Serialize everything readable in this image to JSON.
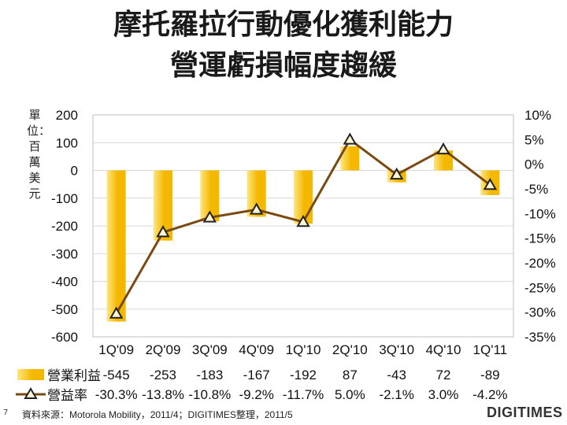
{
  "title_line1": "摩托羅拉行動優化獲利能力",
  "title_line2": "營運虧損幅度趨緩",
  "unit_label": "單位：百萬美元",
  "source": "資料來源：Motorola Mobility，2011/4；DIGITIMES整理，2011/5",
  "page_number": "7",
  "brand": "DIGITIMES",
  "colors": {
    "bar": "#F5B800",
    "bar_light": "#FFE680",
    "line": "#7A4A12",
    "marker_fill": "#FFF6D5",
    "grid": "#D9D9D9"
  },
  "chart_data": {
    "type": "bar+line",
    "categories": [
      "1Q'09",
      "2Q'09",
      "3Q'09",
      "4Q'09",
      "1Q'10",
      "2Q'10",
      "3Q'10",
      "4Q'10",
      "1Q'11"
    ],
    "series": [
      {
        "name": "營業利益",
        "type": "bar",
        "axis": "left",
        "values": [
          -545,
          -253,
          -183,
          -167,
          -192,
          87,
          -43,
          72,
          -89
        ],
        "labels": [
          "-545",
          "-253",
          "-183",
          "-167",
          "-192",
          "87",
          "-43",
          "72",
          "-89"
        ]
      },
      {
        "name": "營益率",
        "type": "line",
        "axis": "right",
        "values": [
          -30.3,
          -13.8,
          -10.8,
          -9.2,
          -11.7,
          5.0,
          -2.1,
          3.0,
          -4.2
        ],
        "labels": [
          "-30.3%",
          "-13.8%",
          "-10.8%",
          "-9.2%",
          "-11.7%",
          "5.0%",
          "-2.1%",
          "3.0%",
          "-4.2%"
        ]
      }
    ],
    "y_left": {
      "min": -600,
      "max": 200,
      "step": 100,
      "tick_labels": [
        "200",
        "100",
        "0",
        "-100",
        "-200",
        "-300",
        "-400",
        "-500",
        "-600"
      ]
    },
    "y_right": {
      "min": -35,
      "max": 10,
      "step": 5,
      "tick_labels": [
        "10%",
        "5%",
        "0%",
        "-5%",
        "-10%",
        "-15%",
        "-20%",
        "-25%",
        "-30%",
        "-35%"
      ]
    },
    "grid": true,
    "legend": "bottom data table"
  }
}
